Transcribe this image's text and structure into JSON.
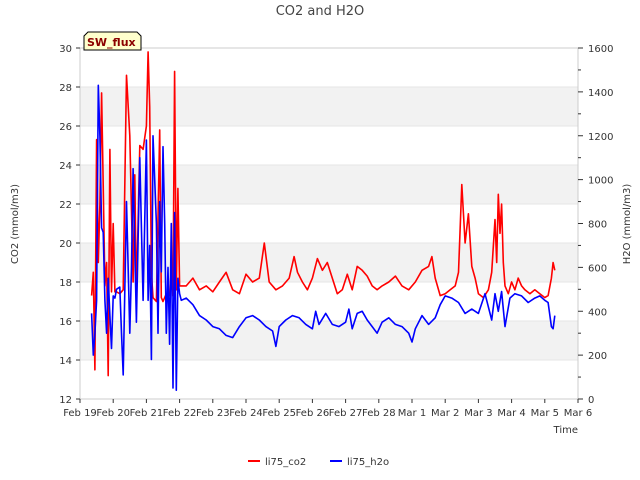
{
  "chart_data": {
    "type": "line",
    "title": "CO2 and H2O",
    "badge": "SW_flux",
    "xlabel": "Time",
    "ylabel_left": "CO2 (mmol/m3)",
    "ylabel_right": "H2O (mmol/m3)",
    "x_ticks": [
      "Feb 19",
      "Feb 20",
      "Feb 21",
      "Feb 22",
      "Feb 23",
      "Feb 24",
      "Feb 25",
      "Feb 26",
      "Feb 27",
      "Feb 28",
      "Mar 1",
      "Mar 2",
      "Mar 3",
      "Mar 4",
      "Mar 5",
      "Mar 6"
    ],
    "xlim_days": [
      0,
      15
    ],
    "ylim_left": [
      12,
      30
    ],
    "yticks_left": [
      12,
      14,
      16,
      18,
      20,
      22,
      24,
      26,
      28,
      30
    ],
    "ylim_right": [
      0,
      1600
    ],
    "yticks_right": [
      0,
      200,
      400,
      600,
      800,
      1000,
      1200,
      1400,
      1600
    ],
    "grid": "horizontal bands",
    "legend_placement": "bottom-center",
    "series": [
      {
        "name": "li75_co2",
        "axis": "left",
        "color": "#ff0000",
        "points": [
          [
            0.35,
            17.3
          ],
          [
            0.4,
            18.5
          ],
          [
            0.45,
            13.5
          ],
          [
            0.5,
            25.3
          ],
          [
            0.55,
            19.0
          ],
          [
            0.6,
            22.0
          ],
          [
            0.65,
            27.7
          ],
          [
            0.7,
            23.0
          ],
          [
            0.75,
            17.8
          ],
          [
            0.8,
            19.0
          ],
          [
            0.85,
            13.2
          ],
          [
            0.9,
            24.8
          ],
          [
            0.95,
            17.5
          ],
          [
            1.0,
            21.0
          ],
          [
            1.05,
            17.5
          ],
          [
            1.1,
            17.5
          ],
          [
            1.2,
            17.4
          ],
          [
            1.3,
            17.6
          ],
          [
            1.4,
            28.6
          ],
          [
            1.5,
            25.5
          ],
          [
            1.6,
            18.0
          ],
          [
            1.65,
            23.5
          ],
          [
            1.7,
            17.2
          ],
          [
            1.8,
            25.0
          ],
          [
            1.9,
            24.8
          ],
          [
            2.0,
            26.0
          ],
          [
            2.05,
            29.8
          ],
          [
            2.1,
            27.0
          ],
          [
            2.15,
            18.5
          ],
          [
            2.2,
            17.2
          ],
          [
            2.3,
            17.0
          ],
          [
            2.4,
            25.8
          ],
          [
            2.45,
            17.2
          ],
          [
            2.5,
            17.0
          ],
          [
            2.6,
            17.4
          ],
          [
            2.7,
            17.3
          ],
          [
            2.75,
            18.7
          ],
          [
            2.8,
            17.3
          ],
          [
            2.85,
            28.8
          ],
          [
            2.9,
            17.6
          ],
          [
            2.95,
            22.8
          ],
          [
            3.0,
            17.8
          ],
          [
            3.05,
            17.8
          ],
          [
            3.2,
            17.8
          ],
          [
            3.4,
            18.2
          ],
          [
            3.6,
            17.6
          ],
          [
            3.8,
            17.8
          ],
          [
            4.0,
            17.5
          ],
          [
            4.2,
            18.0
          ],
          [
            4.4,
            18.5
          ],
          [
            4.6,
            17.6
          ],
          [
            4.8,
            17.4
          ],
          [
            5.0,
            18.4
          ],
          [
            5.2,
            18.0
          ],
          [
            5.4,
            18.2
          ],
          [
            5.55,
            20.0
          ],
          [
            5.7,
            18.0
          ],
          [
            5.9,
            17.6
          ],
          [
            6.1,
            17.8
          ],
          [
            6.3,
            18.2
          ],
          [
            6.45,
            19.3
          ],
          [
            6.55,
            18.5
          ],
          [
            6.7,
            18.0
          ],
          [
            6.85,
            17.6
          ],
          [
            7.0,
            18.2
          ],
          [
            7.15,
            19.2
          ],
          [
            7.3,
            18.6
          ],
          [
            7.45,
            19.0
          ],
          [
            7.6,
            18.2
          ],
          [
            7.75,
            17.4
          ],
          [
            7.9,
            17.6
          ],
          [
            8.05,
            18.4
          ],
          [
            8.2,
            17.6
          ],
          [
            8.35,
            18.8
          ],
          [
            8.5,
            18.6
          ],
          [
            8.65,
            18.3
          ],
          [
            8.8,
            17.8
          ],
          [
            8.95,
            17.6
          ],
          [
            9.1,
            17.8
          ],
          [
            9.3,
            18.0
          ],
          [
            9.5,
            18.3
          ],
          [
            9.7,
            17.8
          ],
          [
            9.9,
            17.6
          ],
          [
            10.1,
            18.0
          ],
          [
            10.3,
            18.6
          ],
          [
            10.5,
            18.8
          ],
          [
            10.6,
            19.3
          ],
          [
            10.7,
            18.2
          ],
          [
            10.85,
            17.3
          ],
          [
            11.0,
            17.4
          ],
          [
            11.15,
            17.6
          ],
          [
            11.3,
            17.8
          ],
          [
            11.4,
            18.5
          ],
          [
            11.5,
            23.0
          ],
          [
            11.6,
            20.0
          ],
          [
            11.7,
            21.5
          ],
          [
            11.8,
            18.8
          ],
          [
            11.9,
            18.2
          ],
          [
            12.0,
            17.4
          ],
          [
            12.15,
            17.2
          ],
          [
            12.3,
            17.6
          ],
          [
            12.4,
            18.5
          ],
          [
            12.5,
            21.2
          ],
          [
            12.55,
            19.0
          ],
          [
            12.6,
            22.5
          ],
          [
            12.65,
            20.5
          ],
          [
            12.7,
            22.0
          ],
          [
            12.75,
            19.0
          ],
          [
            12.8,
            17.8
          ],
          [
            12.9,
            17.4
          ],
          [
            13.0,
            18.0
          ],
          [
            13.1,
            17.6
          ],
          [
            13.2,
            18.2
          ],
          [
            13.3,
            17.8
          ],
          [
            13.4,
            17.6
          ],
          [
            13.55,
            17.4
          ],
          [
            13.7,
            17.6
          ],
          [
            13.85,
            17.4
          ],
          [
            14.0,
            17.2
          ],
          [
            14.1,
            17.3
          ],
          [
            14.2,
            18.2
          ],
          [
            14.25,
            19.0
          ],
          [
            14.3,
            18.6
          ]
        ]
      },
      {
        "name": "li75_h2o",
        "axis": "right",
        "color": "#0000ff",
        "points": [
          [
            0.35,
            390
          ],
          [
            0.4,
            200
          ],
          [
            0.45,
            300
          ],
          [
            0.5,
            450
          ],
          [
            0.55,
            1430
          ],
          [
            0.6,
            1200
          ],
          [
            0.65,
            780
          ],
          [
            0.7,
            760
          ],
          [
            0.75,
            450
          ],
          [
            0.8,
            300
          ],
          [
            0.85,
            550
          ],
          [
            0.9,
            380
          ],
          [
            0.95,
            230
          ],
          [
            1.0,
            470
          ],
          [
            1.05,
            460
          ],
          [
            1.1,
            500
          ],
          [
            1.2,
            510
          ],
          [
            1.25,
            300
          ],
          [
            1.3,
            110
          ],
          [
            1.4,
            900
          ],
          [
            1.5,
            300
          ],
          [
            1.55,
            600
          ],
          [
            1.6,
            1050
          ],
          [
            1.7,
            350
          ],
          [
            1.8,
            1100
          ],
          [
            1.9,
            450
          ],
          [
            2.0,
            1180
          ],
          [
            2.05,
            450
          ],
          [
            2.1,
            700
          ],
          [
            2.15,
            180
          ],
          [
            2.2,
            1200
          ],
          [
            2.3,
            800
          ],
          [
            2.35,
            300
          ],
          [
            2.4,
            900
          ],
          [
            2.45,
            580
          ],
          [
            2.5,
            1150
          ],
          [
            2.55,
            800
          ],
          [
            2.6,
            300
          ],
          [
            2.65,
            600
          ],
          [
            2.7,
            250
          ],
          [
            2.75,
            800
          ],
          [
            2.8,
            50
          ],
          [
            2.85,
            850
          ],
          [
            2.9,
            40
          ],
          [
            2.95,
            550
          ],
          [
            3.0,
            480
          ],
          [
            3.05,
            450
          ],
          [
            3.2,
            460
          ],
          [
            3.4,
            430
          ],
          [
            3.6,
            380
          ],
          [
            3.8,
            360
          ],
          [
            4.0,
            330
          ],
          [
            4.2,
            320
          ],
          [
            4.4,
            290
          ],
          [
            4.6,
            280
          ],
          [
            4.8,
            330
          ],
          [
            5.0,
            370
          ],
          [
            5.2,
            380
          ],
          [
            5.4,
            360
          ],
          [
            5.6,
            330
          ],
          [
            5.8,
            310
          ],
          [
            5.9,
            240
          ],
          [
            6.0,
            330
          ],
          [
            6.2,
            360
          ],
          [
            6.4,
            380
          ],
          [
            6.6,
            370
          ],
          [
            6.8,
            340
          ],
          [
            7.0,
            320
          ],
          [
            7.1,
            400
          ],
          [
            7.2,
            340
          ],
          [
            7.4,
            390
          ],
          [
            7.6,
            340
          ],
          [
            7.8,
            330
          ],
          [
            8.0,
            350
          ],
          [
            8.1,
            410
          ],
          [
            8.2,
            320
          ],
          [
            8.35,
            390
          ],
          [
            8.5,
            400
          ],
          [
            8.65,
            360
          ],
          [
            8.8,
            330
          ],
          [
            8.95,
            300
          ],
          [
            9.1,
            350
          ],
          [
            9.3,
            370
          ],
          [
            9.5,
            340
          ],
          [
            9.7,
            330
          ],
          [
            9.9,
            300
          ],
          [
            10.0,
            260
          ],
          [
            10.1,
            320
          ],
          [
            10.3,
            380
          ],
          [
            10.5,
            340
          ],
          [
            10.7,
            370
          ],
          [
            10.85,
            430
          ],
          [
            11.0,
            470
          ],
          [
            11.2,
            460
          ],
          [
            11.4,
            440
          ],
          [
            11.6,
            390
          ],
          [
            11.8,
            410
          ],
          [
            12.0,
            390
          ],
          [
            12.2,
            480
          ],
          [
            12.4,
            360
          ],
          [
            12.5,
            480
          ],
          [
            12.6,
            400
          ],
          [
            12.7,
            490
          ],
          [
            12.8,
            330
          ],
          [
            12.95,
            460
          ],
          [
            13.1,
            480
          ],
          [
            13.3,
            470
          ],
          [
            13.5,
            440
          ],
          [
            13.7,
            460
          ],
          [
            13.85,
            470
          ],
          [
            14.0,
            450
          ],
          [
            14.1,
            440
          ],
          [
            14.2,
            330
          ],
          [
            14.25,
            320
          ],
          [
            14.3,
            380
          ]
        ]
      }
    ]
  }
}
